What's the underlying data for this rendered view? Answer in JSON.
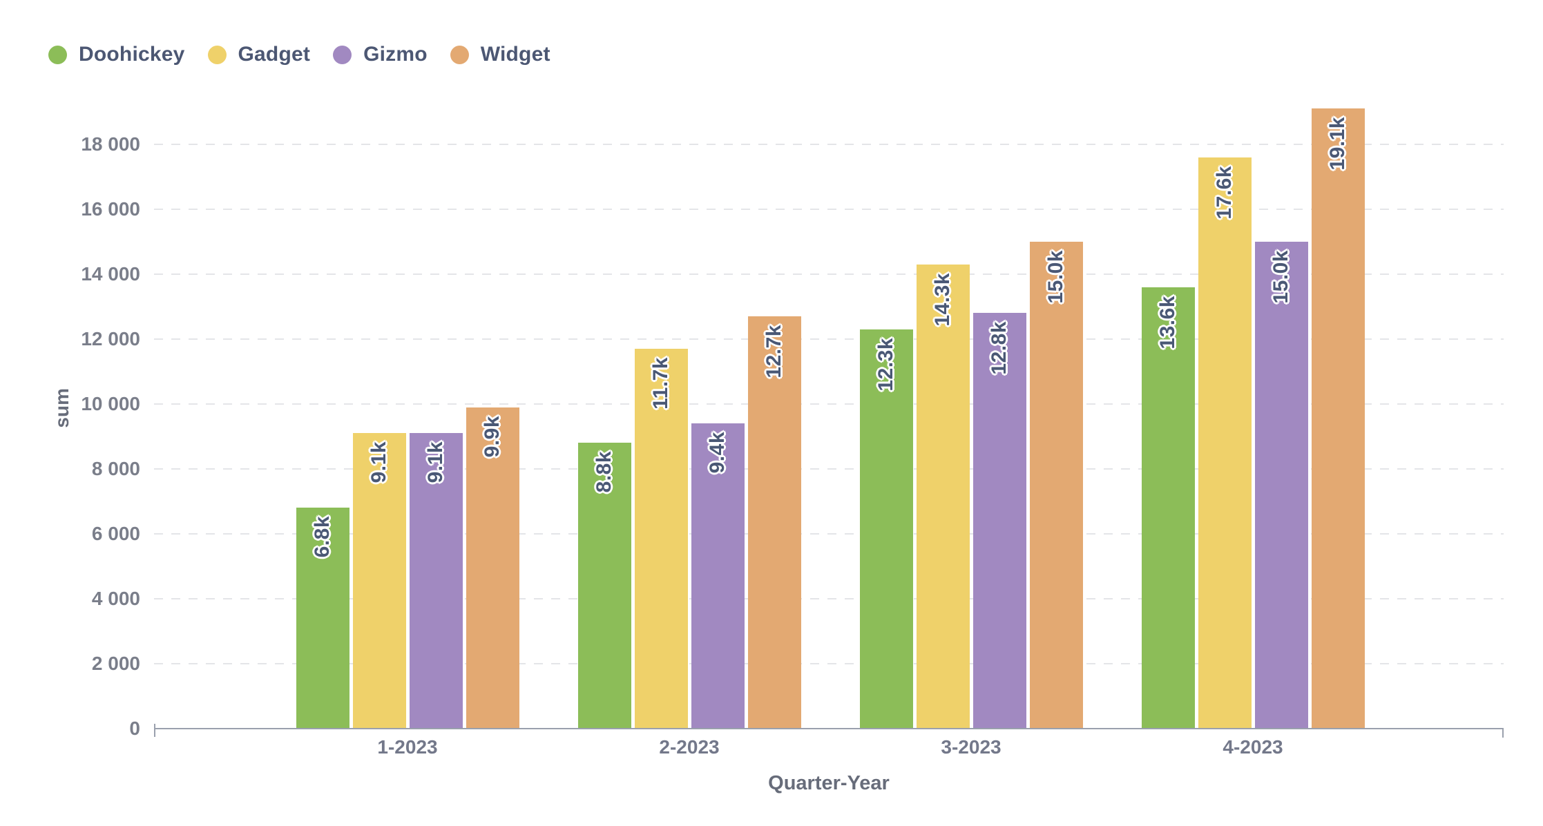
{
  "chart_data": {
    "type": "bar",
    "title": "",
    "xlabel": "Quarter-Year",
    "ylabel": "sum",
    "categories": [
      "1-2023",
      "2-2023",
      "3-2023",
      "4-2023"
    ],
    "series": [
      {
        "name": "Doohickey",
        "color": "#8CBD58",
        "values": [
          6800,
          8800,
          12300,
          13600
        ],
        "value_labels": [
          "6.8k",
          "8.8k",
          "12.3k",
          "13.6k"
        ]
      },
      {
        "name": "Gadget",
        "color": "#EFD16A",
        "values": [
          9100,
          11700,
          14300,
          17600
        ],
        "value_labels": [
          "9.1k",
          "11.7k",
          "14.3k",
          "17.6k"
        ]
      },
      {
        "name": "Gizmo",
        "color": "#A189C1",
        "values": [
          9100,
          9400,
          12800,
          15000
        ],
        "value_labels": [
          "9.1k",
          "9.4k",
          "12.8k",
          "15.0k"
        ]
      },
      {
        "name": "Widget",
        "color": "#E3A972",
        "values": [
          9900,
          12700,
          15000,
          19100
        ],
        "value_labels": [
          "9.9k",
          "12.7k",
          "15.0k",
          "19.1k"
        ]
      }
    ],
    "ylim": [
      0,
      18000
    ],
    "yticks": [
      0,
      2000,
      4000,
      6000,
      8000,
      10000,
      12000,
      14000,
      16000,
      18000
    ],
    "ytick_labels": [
      "0",
      "2 000",
      "4 000",
      "6 000",
      "8 000",
      "10 000",
      "12 000",
      "14 000",
      "16 000",
      "18 000"
    ],
    "legend_position": "top-left",
    "grid": {
      "horizontal": "dashed",
      "vertical": "none"
    },
    "bar_value_label_style": {
      "rotation": -90,
      "color": "#4A5875",
      "outline": "#FFFFFF"
    }
  }
}
